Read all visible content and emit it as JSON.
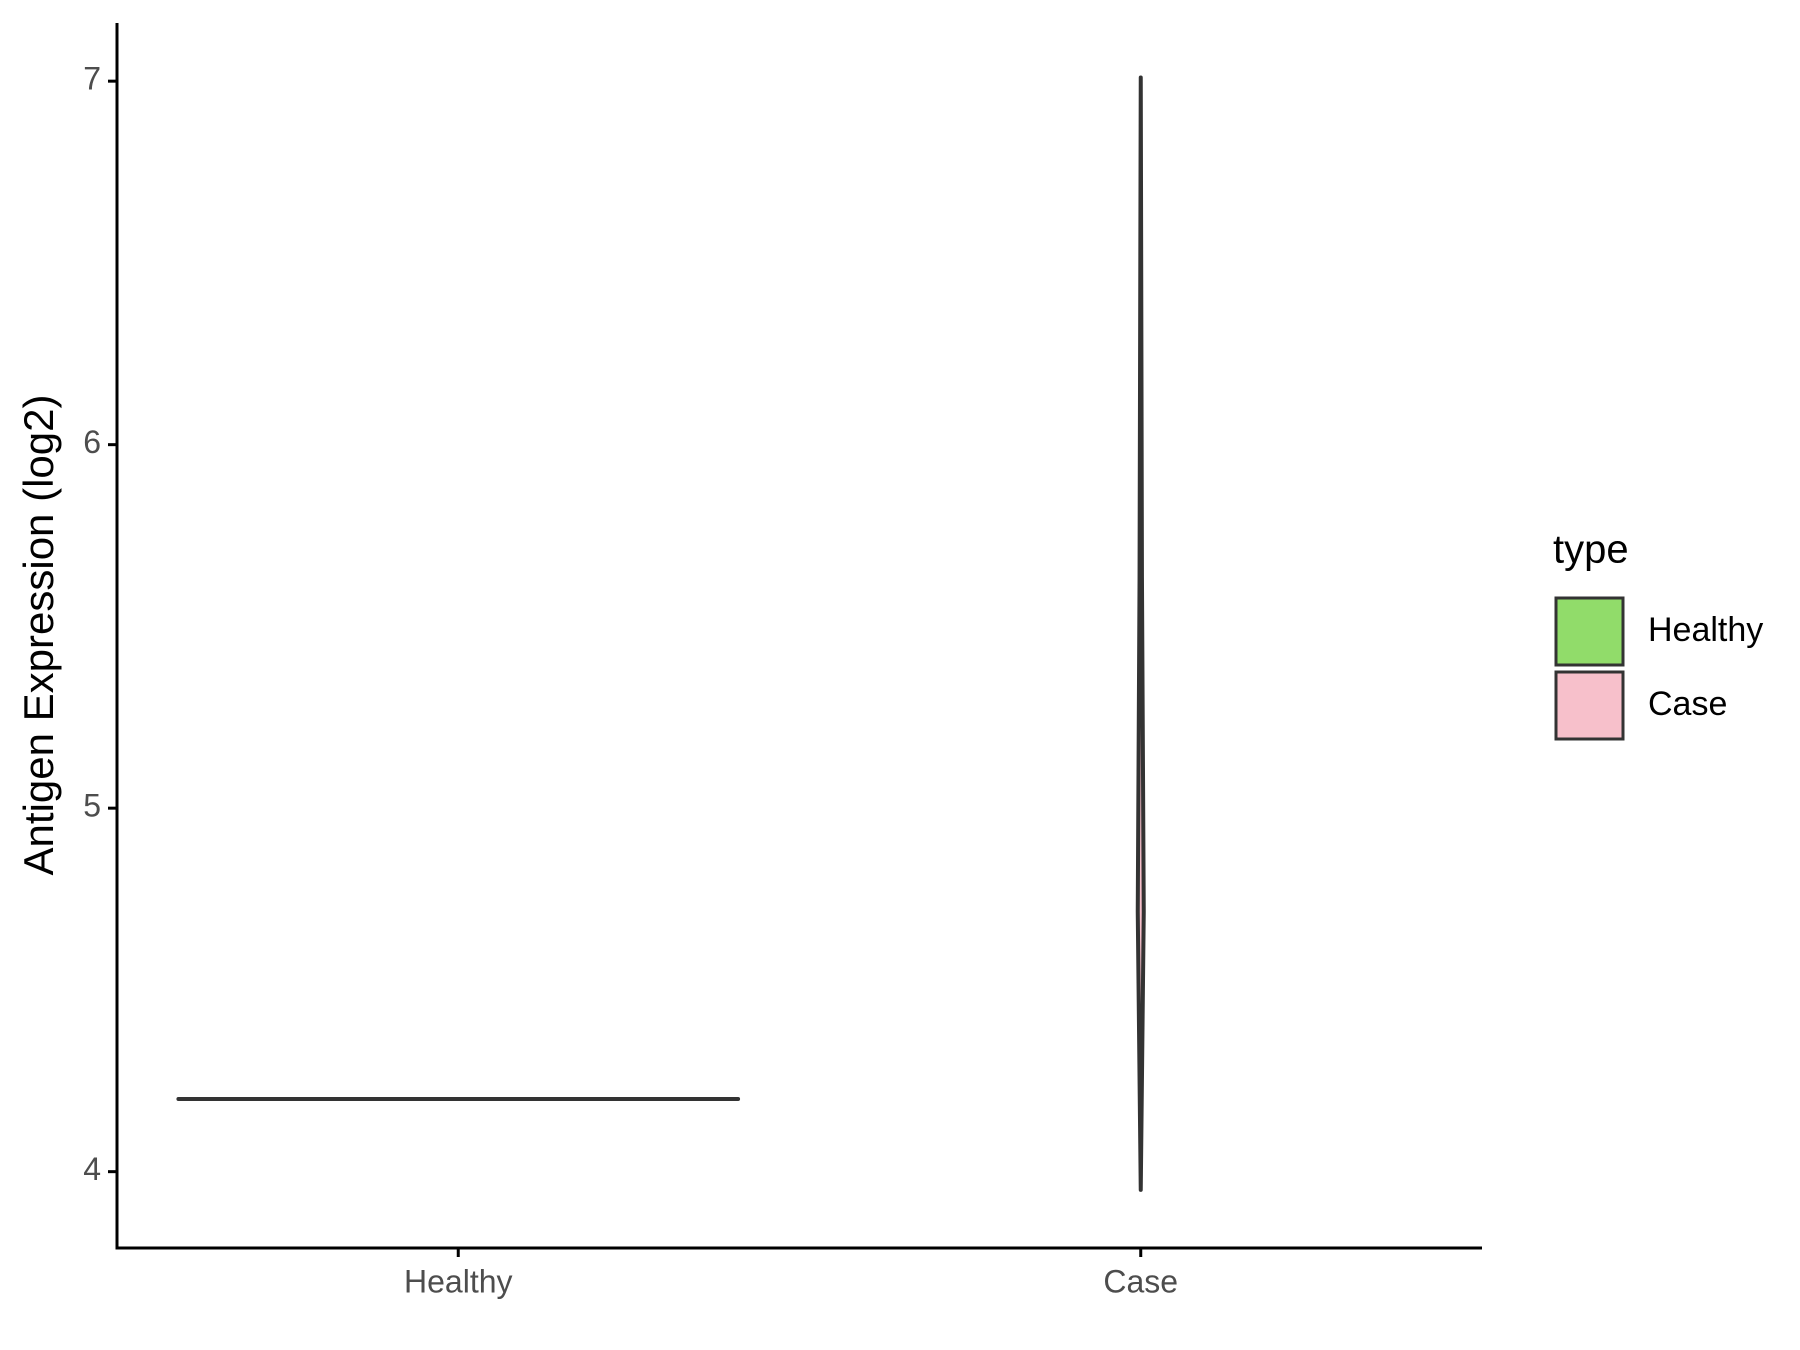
{
  "chart_data": {
    "type": "violin",
    "y_label": "Antigen Expression (log2)",
    "categories": [
      "Healthy",
      "Case"
    ],
    "series": [
      {
        "name": "Healthy",
        "color": "#91dc6a",
        "min": 4.2,
        "max": 4.2
      },
      {
        "name": "Case",
        "color": "#f7c0cb",
        "min": 3.95,
        "max": 7.01
      }
    ],
    "legend_title": "type",
    "legend_position": "right",
    "ylim": [
      3.79,
      7.16
    ],
    "yticks": [
      4,
      5,
      6,
      7
    ],
    "grid": false
  }
}
